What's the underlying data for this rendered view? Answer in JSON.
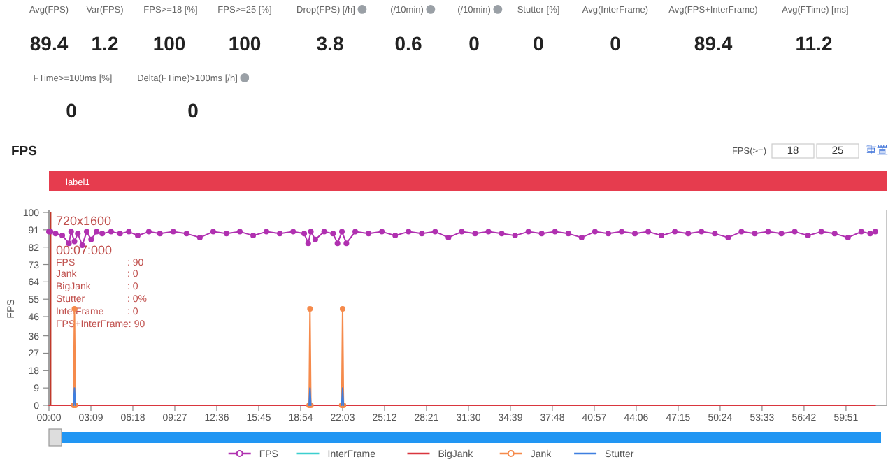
{
  "chart_data": [
    {
      "type": "other",
      "categories": [
        "Avg(FPS)",
        "Var(FPS)",
        "FPS>=18 [%]",
        "FPS>=25 [%]",
        "Drop(FPS) [/h]",
        "(/10min)",
        "(/10min)",
        "Stutter [%]",
        "Avg(InterFrame)",
        "Avg(FPS+InterFrame)",
        "Avg(FTime) [ms]",
        "FTime>=100ms [%]",
        "Delta(FTime)>100ms [/h]"
      ],
      "values": [
        89.4,
        1.2,
        100,
        100,
        3.8,
        0.6,
        0,
        0,
        0,
        89.4,
        11.2,
        0,
        0
      ],
      "data_labels": true
    },
    {
      "type": "line",
      "title": "FPS",
      "ylabel": "FPS",
      "legend": "bottom",
      "xlim": [
        0,
        3774
      ],
      "ylim": [
        0,
        100
      ],
      "xticks": [
        {
          "value": 0,
          "label": "00:00"
        },
        {
          "value": 189,
          "label": "03:09"
        },
        {
          "value": 378,
          "label": "06:18"
        },
        {
          "value": 567,
          "label": "09:27"
        },
        {
          "value": 756,
          "label": "12:36"
        },
        {
          "value": 945,
          "label": "15:45"
        },
        {
          "value": 1134,
          "label": "18:54"
        },
        {
          "value": 1323,
          "label": "22:03"
        },
        {
          "value": 1512,
          "label": "25:12"
        },
        {
          "value": 1701,
          "label": "28:21"
        },
        {
          "value": 1890,
          "label": "31:30"
        },
        {
          "value": 2079,
          "label": "34:39"
        },
        {
          "value": 2268,
          "label": "37:48"
        },
        {
          "value": 2457,
          "label": "40:57"
        },
        {
          "value": 2646,
          "label": "44:06"
        },
        {
          "value": 2835,
          "label": "47:15"
        },
        {
          "value": 3024,
          "label": "50:24"
        },
        {
          "value": 3213,
          "label": "53:33"
        },
        {
          "value": 3402,
          "label": "56:42"
        },
        {
          "value": 3591,
          "label": "59:51"
        }
      ],
      "yticks": [
        0,
        9,
        18,
        27,
        36,
        46,
        55,
        64,
        73,
        82,
        91,
        100
      ],
      "ref_lines": [
        {
          "axis": "x",
          "value": 7,
          "color": "#c0392b"
        }
      ],
      "annotations": [
        "label1",
        "FPS(>=)",
        "18",
        "25",
        "重置",
        "720x1600",
        "00:07:000",
        "FPS",
        ": 90",
        "Jank",
        ": 0",
        "BigJank",
        ": 0",
        "Stutter",
        ": 0%",
        "InterFrame",
        ": 0",
        "FPS+InterFrame: 90"
      ],
      "series": [
        {
          "name": "FPS",
          "color": "#b030b0",
          "marker": "circle",
          "x": [
            0,
            7,
            30,
            60,
            90,
            100,
            115,
            130,
            150,
            170,
            190,
            215,
            240,
            280,
            320,
            360,
            400,
            450,
            500,
            560,
            620,
            680,
            740,
            800,
            860,
            920,
            980,
            1040,
            1100,
            1150,
            1168,
            1180,
            1200,
            1240,
            1280,
            1300,
            1320,
            1340,
            1380,
            1440,
            1500,
            1560,
            1620,
            1680,
            1740,
            1800,
            1860,
            1920,
            1980,
            2040,
            2100,
            2160,
            2220,
            2280,
            2340,
            2400,
            2460,
            2520,
            2580,
            2640,
            2700,
            2760,
            2820,
            2880,
            2940,
            3000,
            3060,
            3120,
            3180,
            3240,
            3300,
            3360,
            3420,
            3480,
            3540,
            3600,
            3660,
            3700,
            3723
          ],
          "values": [
            90,
            90,
            89,
            88,
            84,
            90,
            85,
            89,
            83,
            90,
            86,
            90,
            89,
            90,
            89,
            90,
            88,
            90,
            89,
            90,
            89,
            87,
            90,
            89,
            90,
            88,
            90,
            89,
            90,
            89,
            84,
            90,
            86,
            90,
            89,
            84,
            90,
            84,
            90,
            89,
            90,
            88,
            90,
            89,
            90,
            87,
            90,
            89,
            90,
            89,
            88,
            90,
            89,
            90,
            89,
            87,
            90,
            89,
            90,
            89,
            90,
            88,
            90,
            89,
            90,
            89,
            87,
            90,
            89,
            90,
            89,
            90,
            88,
            90,
            89,
            87,
            90,
            89,
            90
          ]
        },
        {
          "name": "InterFrame",
          "color": "#3ccfcf"
        },
        {
          "name": "BigJank",
          "color": "#d9363e",
          "x": [
            0,
            3723
          ],
          "values": [
            0,
            0
          ]
        },
        {
          "name": "Jank",
          "color": "#f58a4b",
          "marker": "circle",
          "x": [
            111,
            115,
            119,
            null,
            1172,
            1176,
            1180,
            null,
            1319,
            1323,
            1327
          ],
          "values": [
            0,
            50,
            0,
            null,
            0,
            50,
            0,
            null,
            0,
            50,
            0
          ]
        },
        {
          "name": "Stutter",
          "color": "#3f7fe0",
          "x": [
            111,
            115,
            119,
            null,
            1172,
            1176,
            1180,
            null,
            1319,
            1323,
            1327
          ],
          "values": [
            0,
            9,
            0,
            null,
            0,
            9,
            0,
            null,
            0,
            9,
            0
          ]
        }
      ]
    }
  ]
}
